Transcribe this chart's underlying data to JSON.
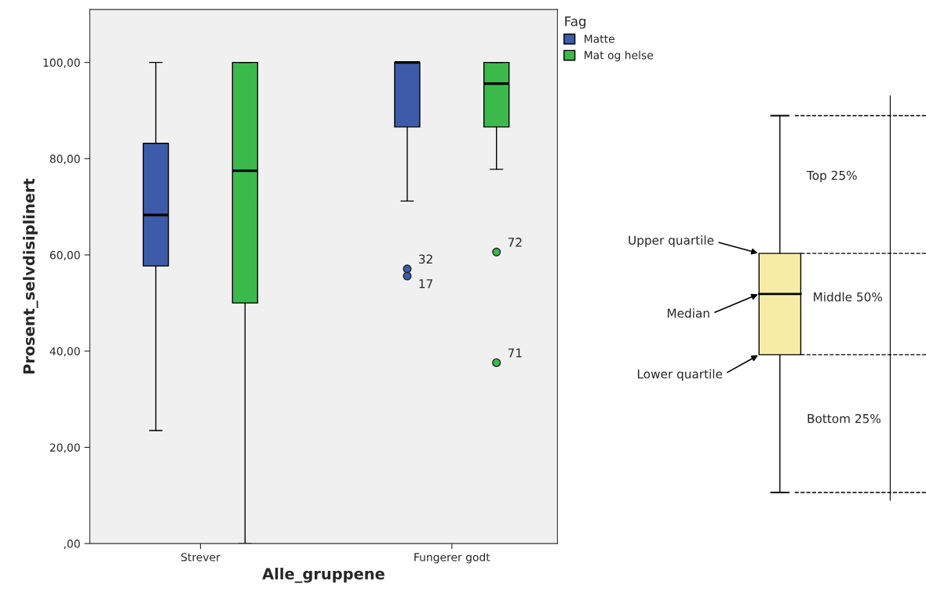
{
  "chart_data": [
    {
      "type": "box",
      "xlabel": "Alle_gruppene",
      "ylabel": "Prosent_selvdisiplinert",
      "legend_title": "Fag",
      "legend": "top right",
      "categories": [
        "Strever",
        "Fungerer godt"
      ],
      "ylim": [
        0,
        111
      ],
      "yticks": [
        {
          "value": 0,
          "label": ",00"
        },
        {
          "value": 20,
          "label": "20,00"
        },
        {
          "value": 40,
          "label": "40,00"
        },
        {
          "value": 60,
          "label": "60,00"
        },
        {
          "value": 80,
          "label": "80,00"
        },
        {
          "value": 100,
          "label": "100,00"
        }
      ],
      "series": [
        {
          "name": "Matte",
          "color": "#3d5ba9",
          "boxes": [
            {
              "low": 23.5,
              "q1": 57.7,
              "median": 68.3,
              "q3": 83.2,
              "high": 100
            },
            {
              "low": 71.2,
              "q1": 86.6,
              "median": 100,
              "q3": 100,
              "high": 100,
              "outliers": [
                57.1,
                55.6
              ]
            }
          ]
        },
        {
          "name": "Mat og helse",
          "color": "#3bb94b",
          "boxes": [
            {
              "low": 0,
              "q1": 50.0,
              "median": 77.5,
              "q3": 100,
              "high": 100
            },
            {
              "low": 77.8,
              "q1": 86.6,
              "median": 95.6,
              "q3": 100,
              "high": 100,
              "outliers": [
                60.6,
                37.6
              ]
            }
          ]
        }
      ],
      "annotations": [
        "32",
        "17",
        "72",
        "71"
      ]
    },
    {
      "type": "other",
      "annotations": [
        "Top 25%",
        "Upper quartile",
        "Median",
        "Middle 50%",
        "Lower quartile",
        "Bottom 25%"
      ]
    }
  ]
}
